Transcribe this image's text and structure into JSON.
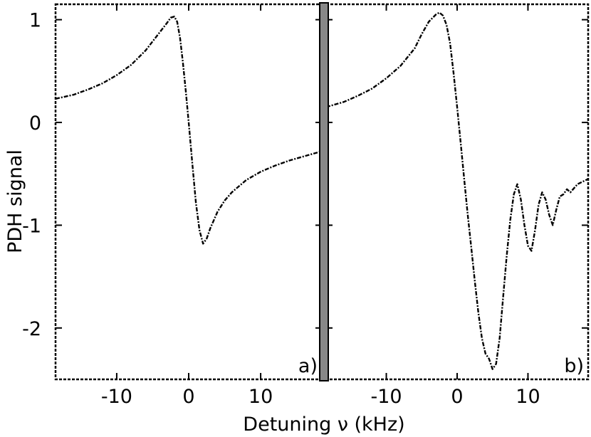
{
  "chart_data": [
    {
      "type": "line",
      "panel_label": "a)",
      "xlabel": "Detuning  ν (kHz)",
      "ylabel": "PDH signal",
      "xlim": [
        -18.5,
        18.5
      ],
      "ylim": [
        -2.5,
        1.15
      ],
      "x_ticks": [
        -10,
        0,
        10
      ],
      "y_ticks": [
        1,
        0,
        -1,
        -2
      ],
      "grid": false,
      "legend": "none",
      "series": [
        {
          "x": [
            -18.5,
            -16,
            -14,
            -12,
            -10,
            -8,
            -6,
            -5,
            -4,
            -3,
            -2.5,
            -2,
            -1.6,
            -1.2,
            -0.8,
            -0.4,
            0,
            0.5,
            1,
            1.5,
            2,
            2.5,
            3,
            3.5,
            4,
            5,
            6,
            8,
            10,
            12,
            14,
            16,
            18.5
          ],
          "y": [
            0.23,
            0.27,
            0.32,
            0.38,
            0.46,
            0.56,
            0.7,
            0.79,
            0.88,
            0.97,
            1.02,
            1.03,
            0.98,
            0.82,
            0.58,
            0.3,
            0.0,
            -0.4,
            -0.78,
            -1.05,
            -1.18,
            -1.13,
            -1.03,
            -0.95,
            -0.87,
            -0.76,
            -0.68,
            -0.56,
            -0.48,
            -0.42,
            -0.37,
            -0.33,
            -0.28
          ]
        }
      ]
    },
    {
      "type": "line",
      "panel_label": "b)",
      "xlabel": "Detuning  ν (kHz)",
      "ylabel": "PDH signal",
      "xlim": [
        -18.5,
        18.5
      ],
      "ylim": [
        -2.5,
        1.15
      ],
      "x_ticks": [
        -10,
        0,
        10
      ],
      "y_ticks": [
        1,
        0,
        -1,
        -2
      ],
      "grid": false,
      "legend": "none",
      "series": [
        {
          "x": [
            -18.5,
            -16,
            -14,
            -12,
            -10,
            -8,
            -6,
            -5,
            -4,
            -3,
            -2.5,
            -2,
            -1.5,
            -1,
            -0.5,
            0,
            0.5,
            1,
            1.5,
            2,
            2.5,
            3,
            3.5,
            4,
            4.5,
            5,
            5.5,
            6,
            6.5,
            7,
            7.5,
            8,
            8.5,
            9,
            9.5,
            10,
            10.5,
            11,
            11.5,
            12,
            12.5,
            13,
            13.5,
            14,
            14.5,
            15,
            15.5,
            16,
            17,
            18.5
          ],
          "y": [
            0.15,
            0.2,
            0.26,
            0.33,
            0.43,
            0.55,
            0.72,
            0.86,
            0.98,
            1.05,
            1.07,
            1.04,
            0.95,
            0.77,
            0.48,
            0.15,
            -0.2,
            -0.55,
            -0.9,
            -1.22,
            -1.55,
            -1.85,
            -2.1,
            -2.25,
            -2.3,
            -2.4,
            -2.35,
            -2.1,
            -1.7,
            -1.3,
            -0.95,
            -0.7,
            -0.6,
            -0.75,
            -1.0,
            -1.2,
            -1.25,
            -1.05,
            -0.8,
            -0.68,
            -0.75,
            -0.9,
            -1.0,
            -0.85,
            -0.72,
            -0.7,
            -0.65,
            -0.68,
            -0.6,
            -0.55
          ]
        }
      ]
    }
  ]
}
